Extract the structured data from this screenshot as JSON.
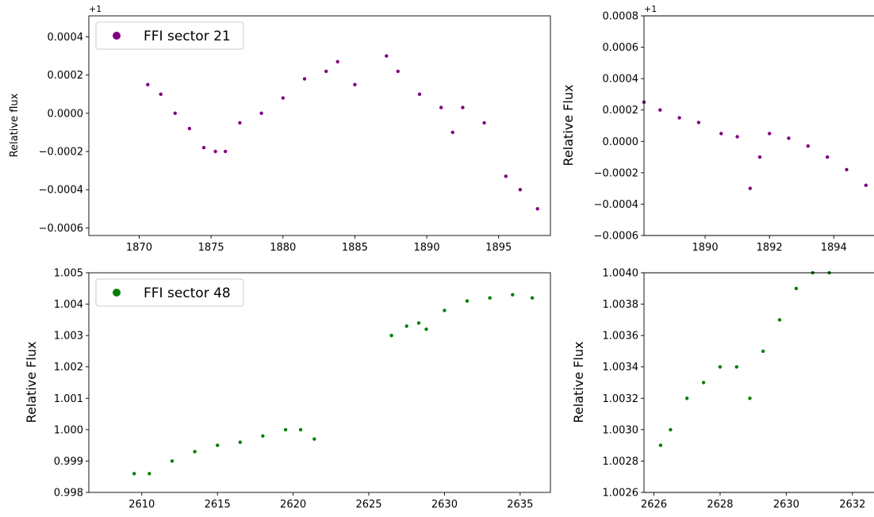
{
  "chart_data": [
    {
      "type": "scatter",
      "offset_label": "+1",
      "xlabel": "",
      "ylabel": "Relative flux",
      "xlim": [
        1866.5,
        1898.6
      ],
      "ylim": [
        -0.00064,
        0.00051
      ],
      "xticks": [
        1870,
        1875,
        1880,
        1885,
        1890,
        1895
      ],
      "xtick_labels": [
        "1870",
        "1875",
        "1880",
        "1885",
        "1890",
        "1895"
      ],
      "yticks": [
        -0.0006,
        -0.0004,
        -0.0002,
        0.0,
        0.0002,
        0.0004
      ],
      "ytick_labels": [
        "−0.0006",
        "−0.0004",
        "−0.0002",
        "0.0000",
        "0.0002",
        "0.0004"
      ],
      "legend": {
        "label": "FFI sector 21",
        "placement": "upper-left"
      },
      "color": "#800080",
      "series": [
        {
          "name": "FFI sector 21",
          "x": [
            1870.6,
            1871.5,
            1872.5,
            1873.5,
            1874.5,
            1875.3,
            1876.0,
            1877.0,
            1878.5,
            1880.0,
            1881.5,
            1883.0,
            1883.8,
            1885.0,
            1887.2,
            1888.0,
            1889.5,
            1891.0,
            1891.8,
            1892.5,
            1894.0,
            1895.5,
            1896.5,
            1897.7
          ],
          "y": [
            0.00015,
            0.0001,
            0.0,
            -8e-05,
            -0.00018,
            -0.0002,
            -0.0002,
            -5e-05,
            0.0,
            8e-05,
            0.00018,
            0.00022,
            0.00027,
            0.00015,
            0.0003,
            0.00022,
            0.0001,
            3e-05,
            -0.0001,
            3e-05,
            -5e-05,
            -0.00033,
            -0.0004,
            -0.0005
          ]
        }
      ]
    },
    {
      "type": "scatter",
      "offset_label": "+1",
      "xlabel": "",
      "ylabel": "Relative Flux",
      "xlim": [
        1888.1,
        1895.3
      ],
      "ylim": [
        -0.0006,
        0.0008
      ],
      "xticks": [
        1890,
        1892,
        1894
      ],
      "xtick_labels": [
        "1890",
        "1892",
        "1894"
      ],
      "yticks": [
        -0.0006,
        -0.0004,
        -0.0002,
        0.0,
        0.0002,
        0.0004,
        0.0006,
        0.0008
      ],
      "ytick_labels": [
        "−0.0006",
        "−0.0004",
        "−0.0002",
        "0.0000",
        "0.0002",
        "0.0004",
        "0.0006",
        "0.0008"
      ],
      "color": "#800080",
      "series": [
        {
          "x": [
            1888.1,
            1888.6,
            1889.2,
            1889.8,
            1890.5,
            1891.0,
            1891.4,
            1891.7,
            1892.0,
            1892.6,
            1893.2,
            1893.8,
            1894.4,
            1895.0
          ],
          "y": [
            0.00025,
            0.0002,
            0.00015,
            0.00012,
            5e-05,
            3e-05,
            -0.0003,
            -0.0001,
            5e-05,
            2e-05,
            -3e-05,
            -0.0001,
            -0.00018,
            -0.00028
          ]
        }
      ]
    },
    {
      "type": "scatter",
      "xlabel": "",
      "ylabel": "Relative Flux",
      "xlim": [
        2606.5,
        2637.0
      ],
      "ylim": [
        0.998,
        1.005
      ],
      "xticks": [
        2610,
        2615,
        2620,
        2625,
        2630,
        2635
      ],
      "xtick_labels": [
        "2610",
        "2615",
        "2620",
        "2625",
        "2630",
        "2635"
      ],
      "yticks": [
        0.998,
        0.999,
        1.0,
        1.001,
        1.002,
        1.003,
        1.004,
        1.005
      ],
      "ytick_labels": [
        "0.998",
        "0.999",
        "1.000",
        "1.001",
        "1.002",
        "1.003",
        "1.004",
        "1.005"
      ],
      "legend": {
        "label": "FFI sector 48",
        "placement": "upper-left"
      },
      "color": "#008000",
      "series": [
        {
          "name": "FFI sector 48",
          "x": [
            2609.5,
            2610.5,
            2612.0,
            2613.5,
            2615.0,
            2616.5,
            2618.0,
            2619.5,
            2620.5,
            2621.4,
            2626.5,
            2627.5,
            2628.3,
            2628.8,
            2630.0,
            2631.5,
            2633.0,
            2634.5,
            2635.8
          ],
          "y": [
            0.9986,
            0.9986,
            0.999,
            0.9993,
            0.9995,
            0.9996,
            0.9998,
            1.0,
            1.0,
            0.9997,
            1.003,
            1.0033,
            1.0034,
            1.0032,
            1.0038,
            1.0041,
            1.0042,
            1.0043,
            1.0042
          ]
        }
      ]
    },
    {
      "type": "scatter",
      "xlabel": "",
      "ylabel": "Relative Flux",
      "xlim": [
        2625.7,
        2632.7
      ],
      "ylim": [
        1.0026,
        1.004
      ],
      "xticks": [
        2626,
        2628,
        2630,
        2632
      ],
      "xtick_labels": [
        "2626",
        "2628",
        "2630",
        "2632"
      ],
      "yticks": [
        1.0026,
        1.0028,
        1.003,
        1.0032,
        1.0034,
        1.0036,
        1.0038,
        1.004
      ],
      "ytick_labels": [
        "1.0026",
        "1.0028",
        "1.0030",
        "1.0032",
        "1.0034",
        "1.0036",
        "1.0038",
        "1.0040"
      ],
      "color": "#008000",
      "series": [
        {
          "x": [
            2626.2,
            2626.5,
            2627.0,
            2627.5,
            2628.0,
            2628.5,
            2628.9,
            2629.3,
            2629.8,
            2630.3,
            2630.8,
            2631.3
          ],
          "y": [
            1.0029,
            1.003,
            1.0032,
            1.0033,
            1.0034,
            1.0034,
            1.0032,
            1.0035,
            1.0037,
            1.0039,
            1.004,
            1.004
          ]
        }
      ]
    }
  ]
}
